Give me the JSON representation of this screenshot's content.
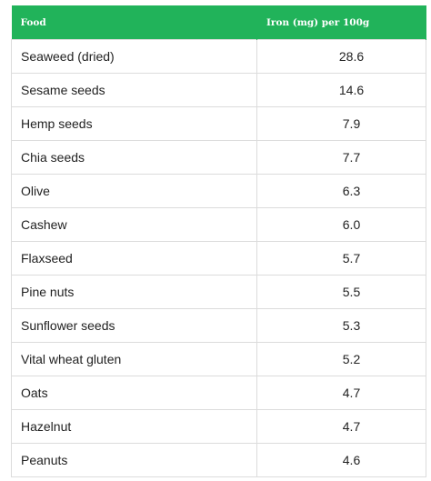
{
  "table": {
    "columns": [
      "Food",
      "Iron (mg) per 100g"
    ],
    "rows": [
      {
        "food": "Seaweed (dried)",
        "iron": "28.6"
      },
      {
        "food": "Sesame seeds",
        "iron": "14.6"
      },
      {
        "food": "Hemp seeds",
        "iron": "7.9"
      },
      {
        "food": "Chia seeds",
        "iron": "7.7"
      },
      {
        "food": "Olive",
        "iron": "6.3"
      },
      {
        "food": "Cashew",
        "iron": "6.0"
      },
      {
        "food": "Flaxseed",
        "iron": "5.7"
      },
      {
        "food": "Pine nuts",
        "iron": "5.5"
      },
      {
        "food": "Sunflower seeds",
        "iron": "5.3"
      },
      {
        "food": "Vital wheat gluten",
        "iron": "5.2"
      },
      {
        "food": "Oats",
        "iron": "4.7"
      },
      {
        "food": "Hazelnut",
        "iron": "4.7"
      },
      {
        "food": "Peanuts",
        "iron": "4.6"
      }
    ]
  },
  "colors": {
    "header_bg": "#21b35a",
    "header_text": "#ffffff",
    "border": "#dcdcdc",
    "body_text": "#222222"
  }
}
